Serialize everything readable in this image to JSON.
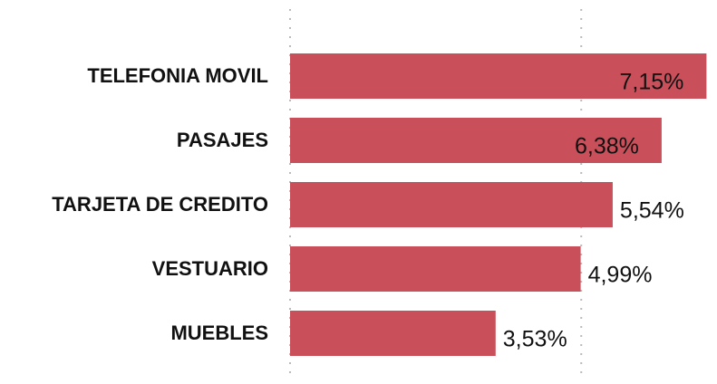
{
  "chart_data": {
    "type": "barh",
    "categories": [
      "TELEFONIA MOVIL",
      "PASAJES",
      "TARJETA DE CREDITO",
      "VESTUARIO",
      "MUEBLES"
    ],
    "values": [
      7.15,
      6.38,
      5.54,
      4.99,
      3.53
    ],
    "value_labels": [
      "7,15%",
      "6,38%",
      "5,54%",
      "4,99%",
      "3,53%"
    ],
    "color": "#c9505a",
    "xlim": [
      0,
      7.3
    ],
    "xticks": [
      0,
      5
    ],
    "grid": true
  }
}
